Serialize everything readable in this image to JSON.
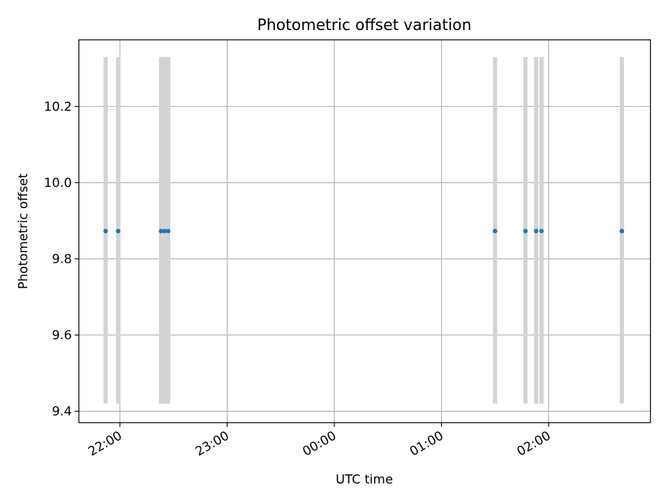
{
  "chart_data": {
    "type": "scatter",
    "title": "Photometric offset variation",
    "xlabel": "UTC time",
    "ylabel": "Photometric offset",
    "x_axis": {
      "kind": "time",
      "range": [
        "21:37",
        "02:57"
      ],
      "ticks": [
        "22:00",
        "23:00",
        "00:00",
        "01:00",
        "02:00"
      ]
    },
    "y_axis": {
      "range": [
        9.37,
        10.375
      ],
      "ticks": [
        9.4,
        9.6,
        9.8,
        10.0,
        10.2
      ],
      "tick_labels": [
        "9.4",
        "9.6",
        "9.8",
        "10.0",
        "10.2"
      ]
    },
    "grid": true,
    "error_bar_color": "#d3d3d3",
    "marker_color": "#1f77b4",
    "points": [
      {
        "time": "21:52",
        "y": 9.873,
        "ylow": 9.42,
        "yhigh": 10.33
      },
      {
        "time": "21:59",
        "y": 9.873,
        "ylow": 9.42,
        "yhigh": 10.33
      },
      {
        "time": "22:23",
        "y": 9.873,
        "ylow": 9.42,
        "yhigh": 10.33
      },
      {
        "time": "22:25",
        "y": 9.873,
        "ylow": 9.42,
        "yhigh": 10.33
      },
      {
        "time": "22:27",
        "y": 9.873,
        "ylow": 9.42,
        "yhigh": 10.33
      },
      {
        "time": "01:30",
        "y": 9.873,
        "ylow": 9.42,
        "yhigh": 10.33
      },
      {
        "time": "01:47",
        "y": 9.873,
        "ylow": 9.42,
        "yhigh": 10.33
      },
      {
        "time": "01:53",
        "y": 9.873,
        "ylow": 9.42,
        "yhigh": 10.33
      },
      {
        "time": "01:56",
        "y": 9.873,
        "ylow": 9.42,
        "yhigh": 10.33
      },
      {
        "time": "02:41",
        "y": 9.873,
        "ylow": 9.42,
        "yhigh": 10.33
      }
    ]
  }
}
